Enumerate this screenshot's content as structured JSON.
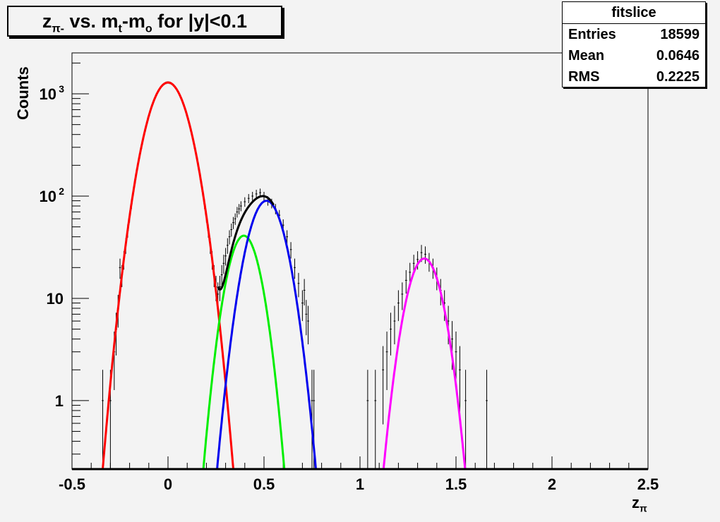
{
  "title": {
    "z": "z",
    "sub1": "π-",
    "mid": " vs. m",
    "sub2": "t",
    "mid2": "-m",
    "sub3": "o",
    "end": " for |y|<0.1"
  },
  "stats": {
    "name": "fitslice",
    "rows": [
      {
        "label": "Entries",
        "value": "18599"
      },
      {
        "label": "Mean",
        "value": "0.0646"
      },
      {
        "label": "RMS",
        "value": "0.2225"
      }
    ]
  },
  "chart_data": {
    "type": "scatter",
    "title": "zπ- vs. mt-mo for |y|<0.1",
    "xlabel": "z",
    "xlabel_sub": "π",
    "ylabel": "Counts",
    "xlim": [
      -0.5,
      2.5
    ],
    "ylim": [
      0.214,
      2512
    ],
    "yscale": "log",
    "grid": false,
    "xticks": [
      {
        "v": -0.5,
        "label": "-0.5"
      },
      {
        "v": 0,
        "label": "0"
      },
      {
        "v": 0.5,
        "label": "0.5"
      },
      {
        "v": 1,
        "label": "1"
      },
      {
        "v": 1.5,
        "label": "1.5"
      },
      {
        "v": 2,
        "label": "2"
      },
      {
        "v": 2.5,
        "label": "2.5"
      }
    ],
    "yticks": [
      {
        "v": 1,
        "label": "1"
      },
      {
        "v": 10,
        "label": "10"
      },
      {
        "v": 100,
        "label": "10",
        "exp": "2"
      },
      {
        "v": 1000,
        "label": "10",
        "exp": "3"
      }
    ],
    "points": [
      [
        -0.34,
        1
      ],
      [
        -0.3,
        1
      ],
      [
        -0.28,
        3
      ],
      [
        -0.27,
        5
      ],
      [
        -0.26,
        8
      ],
      [
        -0.25,
        20
      ],
      [
        -0.24,
        17
      ],
      [
        -0.23,
        24
      ],
      [
        -0.22,
        33
      ],
      [
        -0.21,
        46
      ],
      [
        -0.2,
        63
      ],
      [
        -0.19,
        84
      ],
      [
        -0.18,
        111
      ],
      [
        -0.17,
        145
      ],
      [
        -0.16,
        186
      ],
      [
        -0.15,
        236
      ],
      [
        -0.14,
        293
      ],
      [
        -0.13,
        359
      ],
      [
        -0.12,
        434
      ],
      [
        -0.11,
        517
      ],
      [
        -0.1,
        606
      ],
      [
        -0.09,
        700
      ],
      [
        -0.08,
        795
      ],
      [
        -0.07,
        891
      ],
      [
        -0.06,
        983
      ],
      [
        -0.05,
        1068
      ],
      [
        -0.04,
        1143
      ],
      [
        -0.03,
        1205
      ],
      [
        -0.02,
        1252
      ],
      [
        -0.01,
        1280
      ],
      [
        0.0,
        1290
      ],
      [
        0.01,
        1280
      ],
      [
        0.02,
        1252
      ],
      [
        0.03,
        1205
      ],
      [
        0.04,
        1143
      ],
      [
        0.05,
        1068
      ],
      [
        0.06,
        983
      ],
      [
        0.07,
        891
      ],
      [
        0.08,
        795
      ],
      [
        0.09,
        700
      ],
      [
        0.1,
        606
      ],
      [
        0.11,
        517
      ],
      [
        0.12,
        434
      ],
      [
        0.13,
        359
      ],
      [
        0.14,
        293
      ],
      [
        0.15,
        236
      ],
      [
        0.16,
        186
      ],
      [
        0.17,
        145
      ],
      [
        0.18,
        111
      ],
      [
        0.19,
        84
      ],
      [
        0.2,
        63
      ],
      [
        0.21,
        46
      ],
      [
        0.22,
        33
      ],
      [
        0.23,
        24
      ],
      [
        0.24,
        17
      ],
      [
        0.25,
        13
      ],
      [
        0.26,
        11
      ],
      [
        0.27,
        13
      ],
      [
        0.28,
        17
      ],
      [
        0.29,
        22
      ],
      [
        0.3,
        26
      ],
      [
        0.31,
        33
      ],
      [
        0.32,
        40
      ],
      [
        0.33,
        47
      ],
      [
        0.34,
        55
      ],
      [
        0.35,
        60
      ],
      [
        0.36,
        70
      ],
      [
        0.37,
        75
      ],
      [
        0.38,
        80
      ],
      [
        0.4,
        88
      ],
      [
        0.42,
        95
      ],
      [
        0.44,
        100
      ],
      [
        0.46,
        105
      ],
      [
        0.48,
        108
      ],
      [
        0.5,
        100
      ],
      [
        0.52,
        90
      ],
      [
        0.54,
        85
      ],
      [
        0.56,
        75
      ],
      [
        0.58,
        65
      ],
      [
        0.6,
        52
      ],
      [
        0.62,
        40
      ],
      [
        0.64,
        30
      ],
      [
        0.66,
        20
      ],
      [
        0.68,
        14
      ],
      [
        0.7,
        9
      ],
      [
        0.71,
        12
      ],
      [
        0.72,
        7
      ],
      [
        0.73,
        6
      ],
      [
        0.75,
        1
      ],
      [
        0.76,
        1
      ],
      [
        1.04,
        1
      ],
      [
        1.08,
        1
      ],
      [
        1.12,
        2
      ],
      [
        1.14,
        3
      ],
      [
        1.16,
        5
      ],
      [
        1.18,
        6
      ],
      [
        1.2,
        9
      ],
      [
        1.22,
        11
      ],
      [
        1.24,
        15
      ],
      [
        1.26,
        18
      ],
      [
        1.28,
        22
      ],
      [
        1.3,
        24
      ],
      [
        1.32,
        28
      ],
      [
        1.34,
        27
      ],
      [
        1.36,
        23
      ],
      [
        1.38,
        20
      ],
      [
        1.4,
        16
      ],
      [
        1.42,
        12
      ],
      [
        1.44,
        9
      ],
      [
        1.46,
        6
      ],
      [
        1.48,
        4
      ],
      [
        1.5,
        3
      ],
      [
        1.52,
        2
      ],
      [
        1.55,
        1
      ],
      [
        1.66,
        1
      ]
    ],
    "fits": [
      {
        "name": "gaus-red",
        "color": "#ff0000",
        "amp": 1290,
        "mean": 0.0,
        "sigma": 0.0815,
        "range": [
          -0.34,
          0.375
        ]
      },
      {
        "name": "gaus-green",
        "color": "#00ee00",
        "amp": 41,
        "mean": 0.395,
        "sigma": 0.065,
        "range": [
          0.1,
          0.69
        ]
      },
      {
        "name": "gaus-blue",
        "color": "#0000ee",
        "amp": 90,
        "mean": 0.513,
        "sigma": 0.074,
        "range": [
          0.19,
          0.83
        ]
      },
      {
        "name": "gaus-magenta",
        "color": "#ff00ff",
        "amp": 24.5,
        "mean": 1.335,
        "sigma": 0.069,
        "range": [
          1.025,
          1.636
        ]
      },
      {
        "name": "sum-black",
        "color": "#000000",
        "sum_of": [
          0,
          1,
          2
        ],
        "range": [
          0.26,
          0.55
        ]
      }
    ]
  }
}
